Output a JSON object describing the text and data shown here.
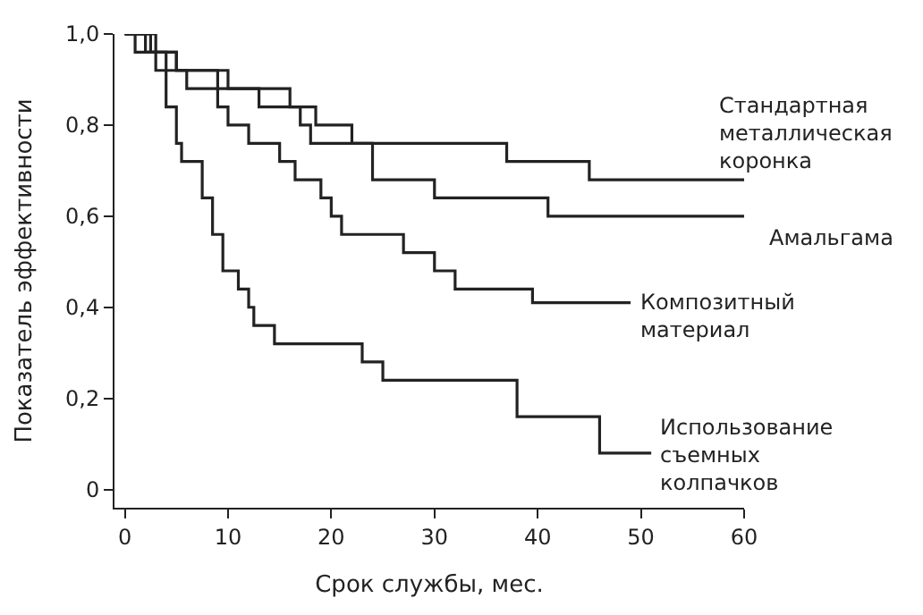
{
  "chart_data": {
    "type": "step",
    "xlabel": "Срок службы, мес.",
    "ylabel": "Показатель эффективности",
    "xlim": [
      -1,
      60
    ],
    "ylim": [
      -0.04,
      1.0
    ],
    "xticks": [
      0,
      10,
      20,
      30,
      40,
      50,
      60
    ],
    "yticks": [
      {
        "value": 0,
        "label": "0"
      },
      {
        "value": 0.2,
        "label": "0,2"
      },
      {
        "value": 0.4,
        "label": "0,4"
      },
      {
        "value": 0.6,
        "label": "0,6"
      },
      {
        "value": 0.8,
        "label": "0,8"
      },
      {
        "value": 1.0,
        "label": "1,0"
      }
    ],
    "marker": "none",
    "line_style": "solid",
    "series": [
      {
        "name": "Стандартная металлическая коронка",
        "color": "#222222",
        "x": [
          0,
          3,
          5,
          9,
          16,
          17,
          18,
          37,
          45,
          60
        ],
        "values": [
          1.0,
          0.96,
          0.92,
          0.88,
          0.84,
          0.8,
          0.76,
          0.72,
          0.68,
          0.68
        ]
      },
      {
        "name": "Амальгама",
        "color": "#222222",
        "x": [
          0,
          2.5,
          5,
          10,
          13,
          18.5,
          22,
          24,
          30,
          41,
          60
        ],
        "values": [
          1.0,
          0.96,
          0.92,
          0.88,
          0.84,
          0.8,
          0.76,
          0.68,
          0.64,
          0.6,
          0.6
        ]
      },
      {
        "name": "Композитный материал",
        "color": "#222222",
        "x": [
          0,
          2,
          4,
          6,
          9,
          10,
          12,
          15,
          16.5,
          19,
          20,
          21,
          27,
          30,
          32,
          39.5,
          49
        ],
        "values": [
          1.0,
          0.96,
          0.92,
          0.88,
          0.84,
          0.8,
          0.76,
          0.72,
          0.68,
          0.64,
          0.6,
          0.56,
          0.52,
          0.48,
          0.44,
          0.41,
          0.41
        ]
      },
      {
        "name": "Использование съемных колпачков",
        "color": "#222222",
        "x": [
          0,
          1,
          3,
          4,
          5,
          5.5,
          7.5,
          8.5,
          9.5,
          11,
          12,
          12.5,
          14.5,
          23,
          25,
          38,
          46,
          51
        ],
        "values": [
          1.0,
          0.96,
          0.92,
          0.84,
          0.76,
          0.72,
          0.64,
          0.56,
          0.48,
          0.44,
          0.4,
          0.36,
          0.32,
          0.28,
          0.24,
          0.16,
          0.08,
          0.08
        ]
      }
    ]
  }
}
